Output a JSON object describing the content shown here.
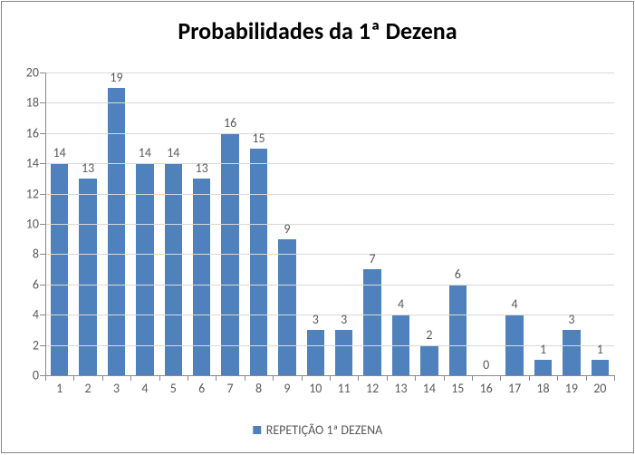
{
  "chart": {
    "type": "bar",
    "title": "Probabilidades da 1ª Dezena",
    "title_fontsize": 26,
    "title_color": "#000000",
    "categories": [
      "1",
      "2",
      "3",
      "4",
      "5",
      "6",
      "7",
      "8",
      "9",
      "10",
      "11",
      "12",
      "13",
      "14",
      "15",
      "16",
      "17",
      "18",
      "19",
      "20"
    ],
    "values": [
      14,
      13,
      19,
      14,
      14,
      13,
      16,
      15,
      9,
      3,
      3,
      7,
      4,
      2,
      6,
      0,
      4,
      1,
      3,
      1
    ],
    "bar_color": "#4f81bd",
    "ylim": [
      0,
      20
    ],
    "ytick_step": 2,
    "yticks": [
      0,
      2,
      4,
      6,
      8,
      10,
      12,
      14,
      16,
      18,
      20
    ],
    "grid_color": "#d9d9d9",
    "axis_color": "#8a8a8a",
    "tick_label_color": "#595959",
    "tick_fontsize": 14,
    "data_label_fontsize": 14,
    "background_color": "#ffffff",
    "border_color": "#868686",
    "bar_width_ratio": 0.62,
    "legend": {
      "label": "REPETIÇÃO 1ª DEZENA",
      "swatch_color": "#4f81bd",
      "fontsize": 14
    }
  }
}
